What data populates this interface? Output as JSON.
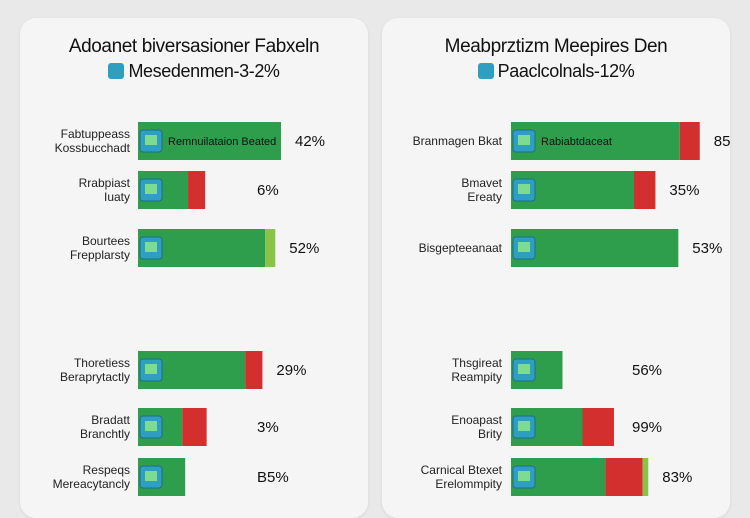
{
  "chart_data": [
    {
      "type": "bar",
      "title": "Adoanet biversasioner Fabxeln",
      "subtitle": "Mesedenmen-3-2%",
      "categories": [
        [
          "Fabtuppeass",
          "Kossbucchadt"
        ],
        [
          "Rrabpiast",
          "Iuaty"
        ],
        [
          "Bourtees",
          "Frepplarsty"
        ],
        [
          "Thoretiess",
          "Beraprytactly"
        ],
        [
          "Bradatt",
          "Branchtly"
        ],
        [
          "Respeqs",
          "Mereacytancly"
        ]
      ],
      "bar_text": [
        "Remnuilataion Beated",
        "",
        "",
        "",
        "",
        ""
      ],
      "values": [
        "42%",
        "6%",
        "52%",
        "29%",
        "3%",
        "B5%"
      ],
      "series": [
        {
          "color": "#2e9e4d",
          "values": [
            100,
            35,
            89,
            75,
            31,
            33
          ]
        },
        {
          "color": "#d32f2f",
          "values": [
            0,
            12,
            0,
            12,
            17,
            0
          ]
        },
        {
          "color": "#8bc34a",
          "values": [
            0,
            0,
            7,
            0,
            0,
            0
          ]
        }
      ]
    },
    {
      "type": "bar",
      "title": "Meabprztizm Meepires Den",
      "subtitle": "Paaclcolnals-12%",
      "categories": [
        [
          "Branmagen Bkat"
        ],
        [
          "Bmavet",
          "Ereaty"
        ],
        [
          "Bisgepteeanaat"
        ],
        [
          "Thsgireat",
          "Reampity"
        ],
        [
          "Enoapast",
          "Brity"
        ],
        [
          "Carnical Btexet",
          "Erelommpity"
        ]
      ],
      "bar_text": [
        "Rabiabtdaceat",
        "",
        "",
        "",
        "",
        ""
      ],
      "values": [
        "85%",
        "35%",
        "53%",
        "56%",
        "99%",
        "83%"
      ],
      "series": [
        {
          "color": "#2e9e4d",
          "values": [
            118,
            86,
            117,
            36,
            50,
            66
          ]
        },
        {
          "color": "#d32f2f",
          "values": [
            14,
            15,
            0,
            0,
            22,
            26
          ]
        },
        {
          "color": "#8bc34a",
          "values": [
            0,
            0,
            0,
            0,
            0,
            4
          ]
        }
      ]
    }
  ]
}
